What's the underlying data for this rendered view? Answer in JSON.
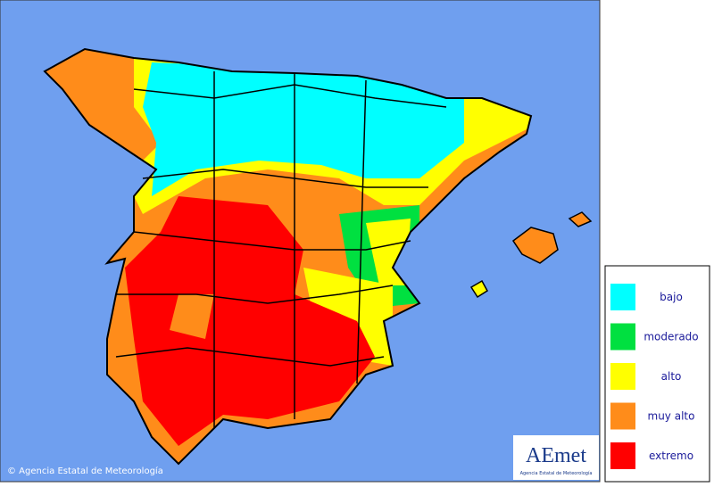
{
  "legend": {
    "items": [
      {
        "label": "bajo",
        "color": "#00ffff"
      },
      {
        "label": "moderado",
        "color": "#00e040"
      },
      {
        "label": "alto",
        "color": "#ffff00"
      },
      {
        "label": "muy alto",
        "color": "#ff8c1a"
      },
      {
        "label": "extremo",
        "color": "#ff0000"
      }
    ]
  },
  "copyright": "© Agencia Estatal de Meteorología",
  "logo": {
    "name": "AEmet",
    "subtitle": "Agencia Estatal de Meteorología"
  }
}
